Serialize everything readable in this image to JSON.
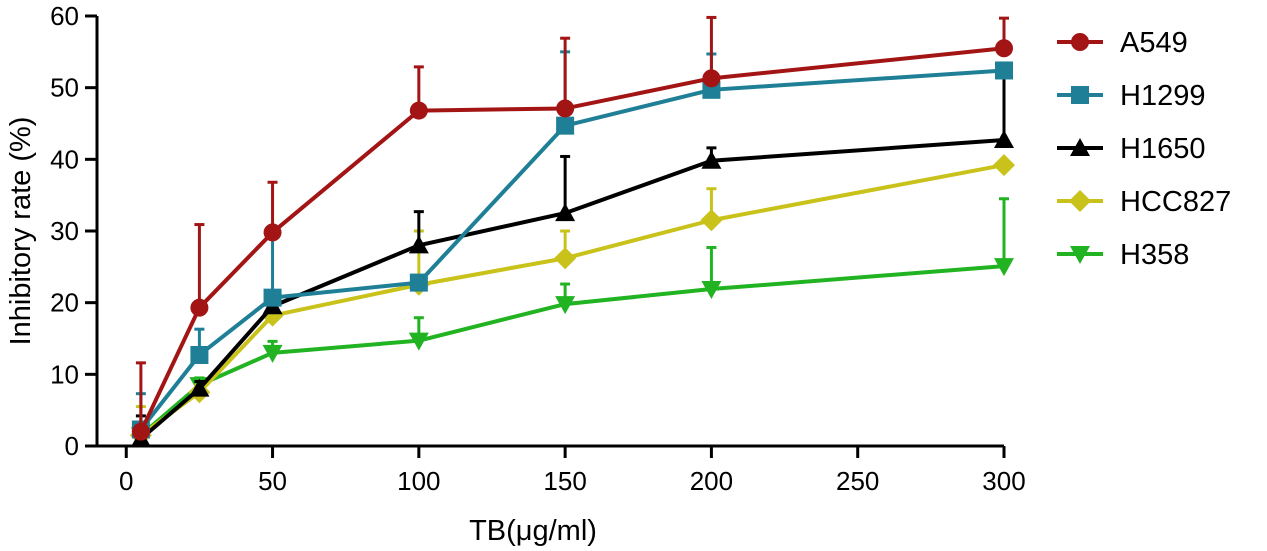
{
  "chart_data": {
    "type": "line",
    "title": "",
    "xlabel": "TB(μg/ml)",
    "ylabel": "Inhibitory rate (%)",
    "xlim": [
      -10,
      300
    ],
    "ylim": [
      0,
      60
    ],
    "xticks": [
      0,
      50,
      100,
      150,
      200,
      250,
      300
    ],
    "yticks": [
      0,
      10,
      20,
      30,
      40,
      50,
      60
    ],
    "grid": false,
    "legend_position": "right",
    "x": [
      5,
      25,
      50,
      100,
      150,
      200,
      300
    ],
    "series": [
      {
        "name": "A549",
        "color": "#a31515",
        "marker": "circle",
        "values": [
          2.0,
          19.3,
          29.8,
          46.8,
          47.1,
          51.3,
          55.5
        ],
        "errors": [
          9.6,
          11.6,
          7.0,
          6.1,
          9.8,
          8.5,
          4.2
        ]
      },
      {
        "name": "H1299",
        "color": "#1f7f96",
        "marker": "square",
        "values": [
          2.3,
          12.7,
          20.7,
          22.8,
          44.7,
          49.7,
          52.4
        ],
        "errors": [
          5.0,
          3.6,
          9.3,
          1.0,
          10.3,
          5.0,
          0.6
        ]
      },
      {
        "name": "H1650",
        "color": "#000000",
        "marker": "triangle-up",
        "values": [
          1.0,
          8.0,
          19.5,
          28.0,
          32.5,
          39.8,
          42.7
        ],
        "errors": [
          3.2,
          1.0,
          1.0,
          4.7,
          7.9,
          1.8,
          10.0
        ]
      },
      {
        "name": "HCC827",
        "color": "#c8c21a",
        "marker": "diamond",
        "values": [
          1.5,
          7.5,
          18.2,
          22.5,
          26.2,
          31.5,
          39.2
        ],
        "errors": [
          4.0,
          1.0,
          1.5,
          7.5,
          3.8,
          4.4,
          0.5
        ]
      },
      {
        "name": "H358",
        "color": "#21b321",
        "marker": "triangle-down",
        "values": [
          1.5,
          8.5,
          13.0,
          14.7,
          19.8,
          21.9,
          25.1
        ],
        "errors": [
          1.0,
          1.0,
          1.6,
          3.2,
          2.8,
          5.8,
          9.4
        ]
      }
    ]
  }
}
